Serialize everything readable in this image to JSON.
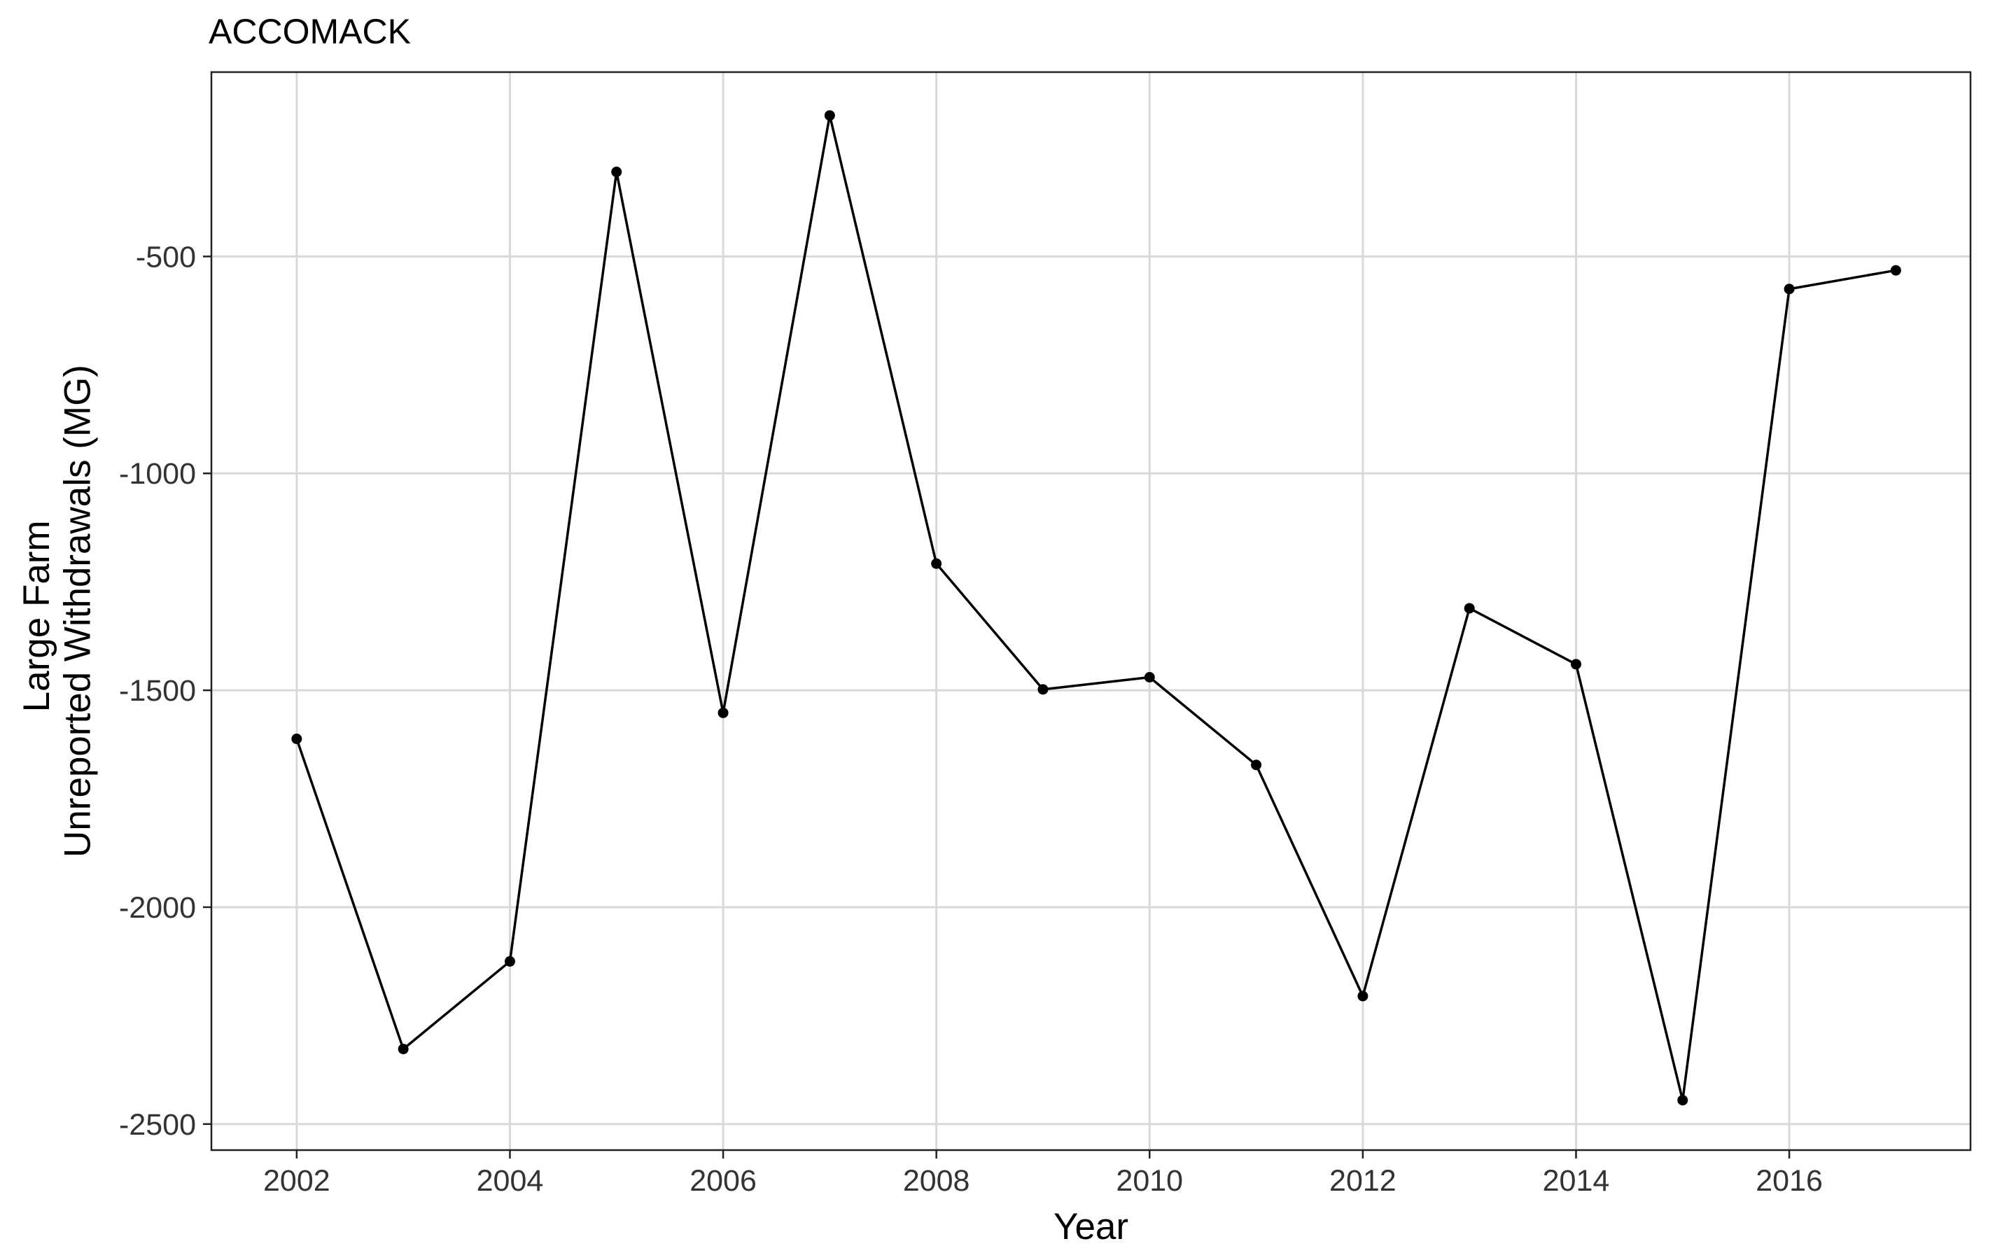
{
  "chart_data": {
    "type": "line",
    "title": "ACCOMACK",
    "xlabel": "Year",
    "ylabel_lines": [
      "Large Farm",
      "Unreported Withdrawals (MG)"
    ],
    "x": [
      2002,
      2003,
      2004,
      2005,
      2006,
      2007,
      2008,
      2009,
      2010,
      2011,
      2012,
      2013,
      2014,
      2015,
      2016,
      2017
    ],
    "series": [
      {
        "values": [
          -1612,
          -2327,
          -2125,
          -305,
          -1552,
          -175,
          -1208,
          -1498,
          -1470,
          -1672,
          -2205,
          -1311,
          -1440,
          -2445,
          -575,
          -532
        ]
      }
    ],
    "xlim": [
      2001.2,
      2017.7
    ],
    "ylim": [
      -2560,
      -75
    ],
    "xticks": [
      2002,
      2004,
      2006,
      2008,
      2010,
      2012,
      2014,
      2016
    ],
    "xtick_labels": [
      "2002",
      "2004",
      "2006",
      "2008",
      "2010",
      "2012",
      "2014",
      "2016"
    ],
    "yticks": [
      -2500,
      -2000,
      -1500,
      -1000,
      -500
    ],
    "ytick_labels": [
      "-2500",
      "-2000",
      "-1500",
      "-1000",
      "-500"
    ],
    "grid": true,
    "legend": "none",
    "colors": {
      "line": "#000000",
      "point": "#000000",
      "grid": "#d9d9d9",
      "background": "#ffffff"
    }
  }
}
